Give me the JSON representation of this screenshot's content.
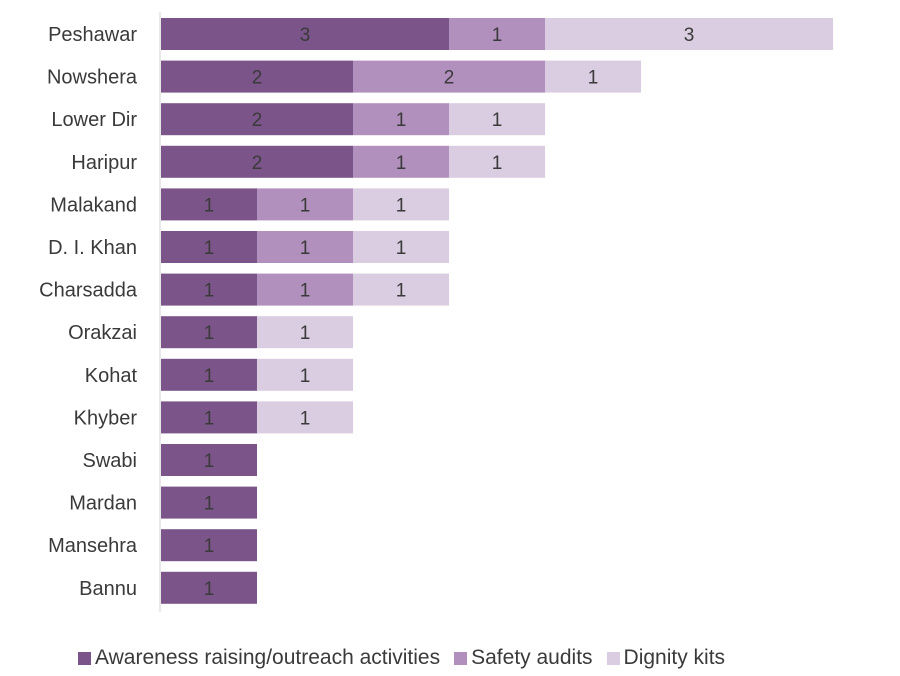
{
  "chart_data": {
    "type": "bar",
    "orientation": "horizontal",
    "stacked": true,
    "categories": [
      "Peshawar",
      "Nowshera",
      "Lower Dir",
      "Haripur",
      "Malakand",
      "D. I. Khan",
      "Charsadda",
      "Orakzai",
      "Kohat",
      "Khyber",
      "Swabi",
      "Mardan",
      "Mansehra",
      "Bannu"
    ],
    "series": [
      {
        "name": "Awareness raising/outreach activities",
        "color": "#7b5489",
        "values": [
          3,
          2,
          2,
          2,
          1,
          1,
          1,
          1,
          1,
          1,
          1,
          1,
          1,
          1
        ]
      },
      {
        "name": "Safety audits",
        "color": "#b290bd",
        "values": [
          1,
          2,
          1,
          1,
          1,
          1,
          1,
          0,
          0,
          0,
          0,
          0,
          0,
          0
        ]
      },
      {
        "name": "Dignity kits",
        "color": "#dbcde1",
        "values": [
          3,
          1,
          1,
          1,
          1,
          1,
          1,
          1,
          1,
          1,
          0,
          0,
          0,
          0
        ]
      }
    ],
    "title": "",
    "xlabel": "",
    "ylabel": "",
    "xlim": [
      0,
      7
    ],
    "grid": false,
    "data_labels": true,
    "legend_position": "bottom"
  }
}
